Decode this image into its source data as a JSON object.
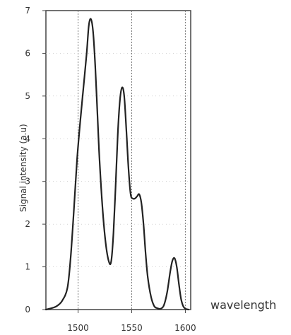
{
  "chart_data": {
    "type": "line",
    "xlabel": "wavelength",
    "ylabel": "Signal intensity (a.u)",
    "xlim": [
      1470,
      1605
    ],
    "ylim": [
      0,
      7
    ],
    "x_ticks": [
      "1500",
      "1550",
      "1600"
    ],
    "y_ticks": [
      "0",
      "1",
      "2",
      "3",
      "4",
      "5",
      "6",
      "7"
    ],
    "grid": true,
    "series": [
      {
        "x": [
          1470,
          1475,
          1480,
          1485,
          1490,
          1493,
          1496,
          1499,
          1502,
          1505,
          1508,
          1510,
          1512,
          1514,
          1516,
          1518,
          1520,
          1523,
          1526,
          1529,
          1531,
          1533,
          1535,
          1537,
          1539,
          1541,
          1543,
          1545,
          1547,
          1549,
          1551,
          1553,
          1555,
          1557,
          1559,
          1561,
          1563,
          1565,
          1568,
          1571,
          1574,
          1577,
          1580,
          1583,
          1586,
          1588,
          1590,
          1592,
          1594,
          1596,
          1598,
          1600,
          1603
        ],
        "y": [
          0,
          0.03,
          0.08,
          0.2,
          0.5,
          1.2,
          2.3,
          3.5,
          4.4,
          5.2,
          6.0,
          6.65,
          6.8,
          6.5,
          5.7,
          4.6,
          3.5,
          2.3,
          1.5,
          1.1,
          1.15,
          1.8,
          2.9,
          4.1,
          4.9,
          5.2,
          5.0,
          4.2,
          3.3,
          2.7,
          2.6,
          2.6,
          2.65,
          2.7,
          2.5,
          2.0,
          1.3,
          0.75,
          0.3,
          0.08,
          0.03,
          0.02,
          0.1,
          0.4,
          0.9,
          1.15,
          1.2,
          1.0,
          0.6,
          0.25,
          0.08,
          0.02,
          0
        ]
      }
    ]
  }
}
